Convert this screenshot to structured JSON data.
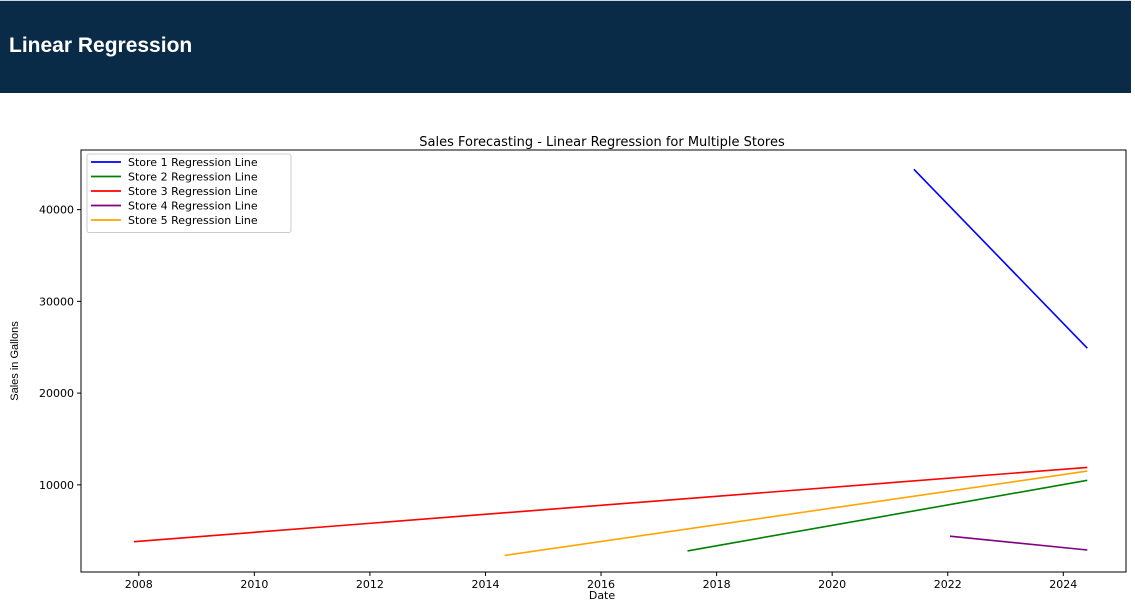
{
  "page": {
    "title": "Linear Regression"
  },
  "chart_data": {
    "type": "line",
    "title": "Sales Forecasting - Linear Regression for Multiple Stores",
    "xlabel": "Date",
    "ylabel": "Sales in Gallons",
    "xlim": [
      "2007-01-01",
      "2025-02-01"
    ],
    "ylim": [
      500,
      46500
    ],
    "xticks": [
      2008,
      2010,
      2012,
      2014,
      2016,
      2018,
      2020,
      2022,
      2024
    ],
    "yticks": [
      10000,
      20000,
      30000,
      40000
    ],
    "grid": false,
    "legend_position": "top-left",
    "series": [
      {
        "name": "Store 1 Regression Line",
        "color": "#0000ff",
        "x": [
          "2021-06-01",
          "2024-06-01"
        ],
        "y": [
          44400,
          24900
        ]
      },
      {
        "name": "Store 2 Regression Line",
        "color": "#008000",
        "x": [
          "2017-07-01",
          "2024-06-01"
        ],
        "y": [
          2800,
          10500
        ]
      },
      {
        "name": "Store 3 Regression Line",
        "color": "#ff0000",
        "x": [
          "2007-12-01",
          "2024-06-01"
        ],
        "y": [
          3800,
          11900
        ]
      },
      {
        "name": "Store 4 Regression Line",
        "color": "#800080",
        "x": [
          "2022-01-15",
          "2024-06-01"
        ],
        "y": [
          4400,
          2900
        ]
      },
      {
        "name": "Store 5 Regression Line",
        "color": "#ffa500",
        "x": [
          "2014-05-01",
          "2024-06-01"
        ],
        "y": [
          2300,
          11500
        ]
      }
    ]
  }
}
